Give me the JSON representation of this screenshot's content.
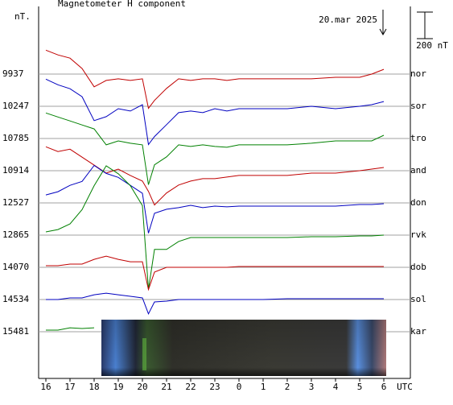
{
  "chart_data": {
    "type": "line",
    "title": "Magnetometer H component",
    "y_unit_label": "nT.",
    "x_unit_label": "UTC",
    "date_label": "20.mar 2025",
    "scale_bar": {
      "value": 200,
      "label": "200 nT"
    },
    "xlim": [
      15.7,
      31.1
    ],
    "xticks": [
      16,
      17,
      18,
      19,
      20,
      21,
      22,
      23,
      {
        "value": 24,
        "label": "0"
      },
      {
        "value": 25,
        "label": "1"
      },
      {
        "value": 26,
        "label": "2"
      },
      {
        "value": 27,
        "label": "3"
      },
      {
        "value": 28,
        "label": "4"
      },
      {
        "value": 29,
        "label": "5"
      },
      {
        "value": 30,
        "label": "6"
      }
    ],
    "x": [
      16,
      16.5,
      17,
      17.5,
      18,
      18.5,
      19,
      19.5,
      20,
      20.25,
      20.5,
      21,
      21.5,
      22,
      22.5,
      23,
      23.5,
      24,
      25,
      26,
      27,
      28,
      29,
      29.5,
      30
    ],
    "series": [
      {
        "name": "nor",
        "baseline": 9937,
        "color": "#c00000",
        "values": [
          180,
          144,
          120,
          42,
          -96,
          -48,
          -36,
          -48,
          -36,
          -258,
          -198,
          -108,
          -36,
          -48,
          -36,
          -36,
          -48,
          -36,
          -36,
          -36,
          -36,
          -24,
          -24,
          0,
          36
        ]
      },
      {
        "name": "sor",
        "baseline": 10247,
        "color": "#0000c0",
        "values": [
          204,
          162,
          132,
          72,
          -108,
          -78,
          -18,
          -36,
          12,
          -288,
          -228,
          -138,
          -48,
          -36,
          -48,
          -18,
          -36,
          -18,
          -18,
          -18,
          0,
          -18,
          0,
          12,
          36
        ]
      },
      {
        "name": "tro",
        "baseline": 10785,
        "color": "#008000",
        "values": [
          192,
          162,
          132,
          102,
          72,
          -48,
          -18,
          -36,
          -48,
          -348,
          -198,
          -138,
          -48,
          -60,
          -48,
          -60,
          -66,
          -48,
          -48,
          -48,
          -36,
          -18,
          -18,
          -18,
          24
        ]
      },
      {
        "name": "and",
        "baseline": 10914,
        "color": "#c00000",
        "values": [
          180,
          144,
          162,
          102,
          42,
          -18,
          12,
          -36,
          -78,
          -156,
          -258,
          -168,
          -108,
          -78,
          -60,
          -60,
          -48,
          -36,
          -36,
          -36,
          -18,
          -18,
          0,
          12,
          24
        ]
      },
      {
        "name": "don",
        "baseline": 12527,
        "color": "#0000c0",
        "values": [
          60,
          84,
          132,
          162,
          282,
          222,
          192,
          132,
          72,
          -228,
          -78,
          -48,
          -36,
          -18,
          -36,
          -24,
          -30,
          -24,
          -24,
          -24,
          -24,
          -24,
          -12,
          -12,
          -6
        ]
      },
      {
        "name": "rvk",
        "baseline": 12865,
        "color": "#008000",
        "values": [
          24,
          42,
          84,
          192,
          372,
          522,
          462,
          372,
          222,
          -408,
          -108,
          -108,
          -48,
          -18,
          -18,
          -18,
          -18,
          -18,
          -18,
          -18,
          -12,
          -12,
          -6,
          -6,
          0
        ]
      },
      {
        "name": "dob",
        "baseline": 14070,
        "color": "#c00000",
        "values": [
          12,
          12,
          24,
          24,
          60,
          84,
          60,
          42,
          42,
          -168,
          -36,
          0,
          0,
          0,
          0,
          0,
          0,
          6,
          6,
          6,
          6,
          6,
          6,
          6,
          6
        ]
      },
      {
        "name": "sol",
        "baseline": 14534,
        "color": "#0000c0",
        "values": [
          0,
          0,
          12,
          12,
          36,
          48,
          36,
          24,
          12,
          -108,
          -18,
          -12,
          0,
          0,
          0,
          0,
          0,
          0,
          0,
          6,
          6,
          6,
          6,
          6,
          6
        ]
      },
      {
        "name": "kar",
        "baseline": 15481,
        "color": "#008000",
        "values": [
          12,
          12,
          30,
          24,
          30,
          null,
          null,
          null,
          null,
          null,
          null,
          null,
          null,
          null,
          null,
          null,
          null,
          null,
          null,
          null,
          null,
          null,
          null,
          null,
          null
        ]
      }
    ]
  }
}
